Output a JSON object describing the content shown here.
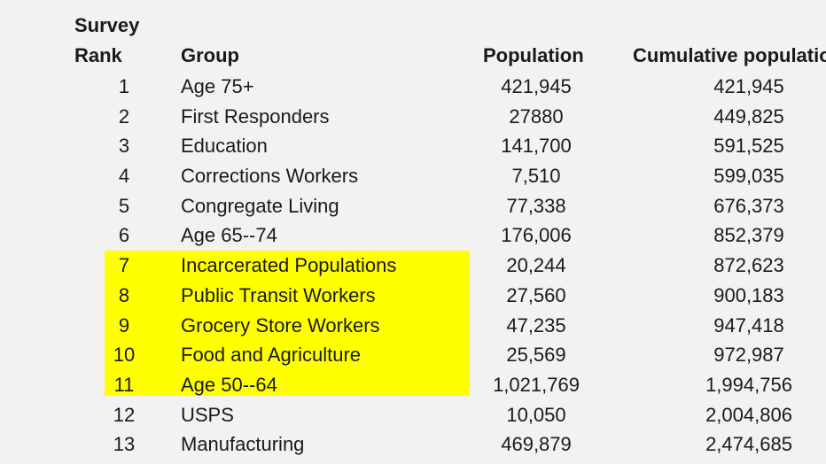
{
  "headers": {
    "rank_line1": "Survey",
    "rank_line2": "Rank",
    "group": "Group",
    "population": "Population",
    "cumulative": "Cumulative populatio"
  },
  "highlight_color": "#ffff00",
  "rows": [
    {
      "rank": "1",
      "group": "Age 75+",
      "population": "421,945",
      "cumulative": "421,945"
    },
    {
      "rank": "2",
      "group": "First Responders",
      "population": "27880",
      "cumulative": "449,825"
    },
    {
      "rank": "3",
      "group": "Education",
      "population": "141,700",
      "cumulative": "591,525"
    },
    {
      "rank": "4",
      "group": "Corrections Workers",
      "population": "7,510",
      "cumulative": "599,035"
    },
    {
      "rank": "5",
      "group": "Congregate Living",
      "population": "77,338",
      "cumulative": "676,373"
    },
    {
      "rank": "6",
      "group": "Age 65--74",
      "population": "176,006",
      "cumulative": "852,379"
    },
    {
      "rank": "7",
      "group": "Incarcerated Populations",
      "population": "20,244",
      "cumulative": "872,623"
    },
    {
      "rank": "8",
      "group": "Public Transit Workers",
      "population": "27,560",
      "cumulative": "900,183"
    },
    {
      "rank": "9",
      "group": "Grocery Store Workers",
      "population": "47,235",
      "cumulative": "947,418"
    },
    {
      "rank": "10",
      "group": "Food and Agriculture",
      "population": "25,569",
      "cumulative": "972,987"
    },
    {
      "rank": "11",
      "group": "Age 50--64",
      "population": "1,021,769",
      "cumulative": "1,994,756"
    },
    {
      "rank": "12",
      "group": "USPS",
      "population": "10,050",
      "cumulative": "2,004,806"
    },
    {
      "rank": "13",
      "group": "Manufacturing",
      "population": "469,879",
      "cumulative": "2,474,685"
    }
  ]
}
